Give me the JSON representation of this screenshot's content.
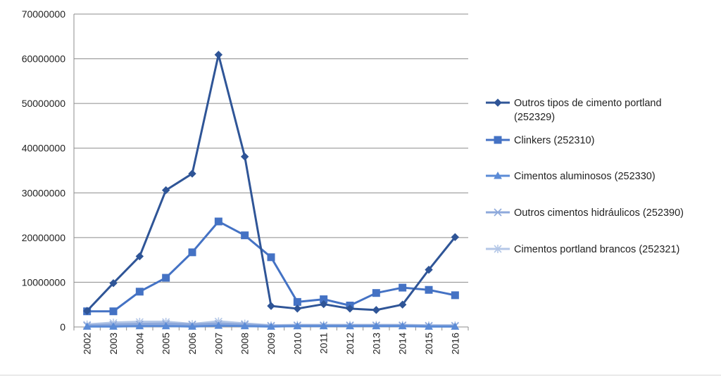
{
  "chart_data": {
    "type": "line",
    "title": "",
    "xlabel": "",
    "ylabel": "",
    "ylim": [
      0,
      70000000
    ],
    "y_ticks": [
      "0",
      "10000000",
      "20000000",
      "30000000",
      "40000000",
      "50000000",
      "60000000",
      "70000000"
    ],
    "grid": true,
    "legend_position": "right",
    "x": [
      "2002",
      "2003",
      "2004",
      "2005",
      "2006",
      "2007",
      "2008",
      "2009",
      "2010",
      "2011",
      "2012",
      "2013",
      "2014",
      "2015",
      "2016"
    ],
    "series": [
      {
        "name": "Outros tipos de cimento portland (252329)",
        "legend_lines": [
          "Outros tipos de cimento portland",
          "(252329)"
        ],
        "color": "#2F5597",
        "marker": "diamond",
        "values": [
          3600000,
          9800000,
          15800000,
          30600000,
          34300000,
          60900000,
          38100000,
          4700000,
          4100000,
          5100000,
          4100000,
          3800000,
          5000000,
          12800000,
          20100000
        ]
      },
      {
        "name": "Clinkers (252310)",
        "legend_lines": [
          "Clinkers (252310)"
        ],
        "color": "#4472C4",
        "marker": "square",
        "values": [
          3500000,
          3500000,
          7900000,
          11000000,
          16700000,
          23600000,
          20500000,
          15600000,
          5600000,
          6200000,
          4800000,
          7600000,
          8800000,
          8300000,
          7100000
        ]
      },
      {
        "name": "Cimentos aluminosos (252330)",
        "legend_lines": [
          "Cimentos aluminosos (252330)"
        ],
        "color": "#5B8BD6",
        "marker": "triangle",
        "values": [
          100000,
          100000,
          200000,
          200000,
          100000,
          300000,
          200000,
          100000,
          200000,
          200000,
          200000,
          200000,
          200000,
          100000,
          100000
        ]
      },
      {
        "name": "Outros cimentos hidráulicos (252390)",
        "legend_lines": [
          "Outros cimentos hidráulicos (252390)"
        ],
        "color": "#8EA9DB",
        "marker": "x",
        "values": [
          300000,
          500000,
          600000,
          700000,
          500000,
          700000,
          500000,
          200000,
          300000,
          300000,
          300000,
          300000,
          300000,
          200000,
          200000
        ]
      },
      {
        "name": "Cimentos portland brancos (252321)",
        "legend_lines": [
          "Cimentos portland brancos  (252321)"
        ],
        "color": "#B4C7E7",
        "marker": "star",
        "values": [
          500000,
          900000,
          1100000,
          1100000,
          600000,
          1200000,
          700000,
          300000,
          400000,
          400000,
          400000,
          400000,
          400000,
          300000,
          300000
        ]
      }
    ]
  }
}
